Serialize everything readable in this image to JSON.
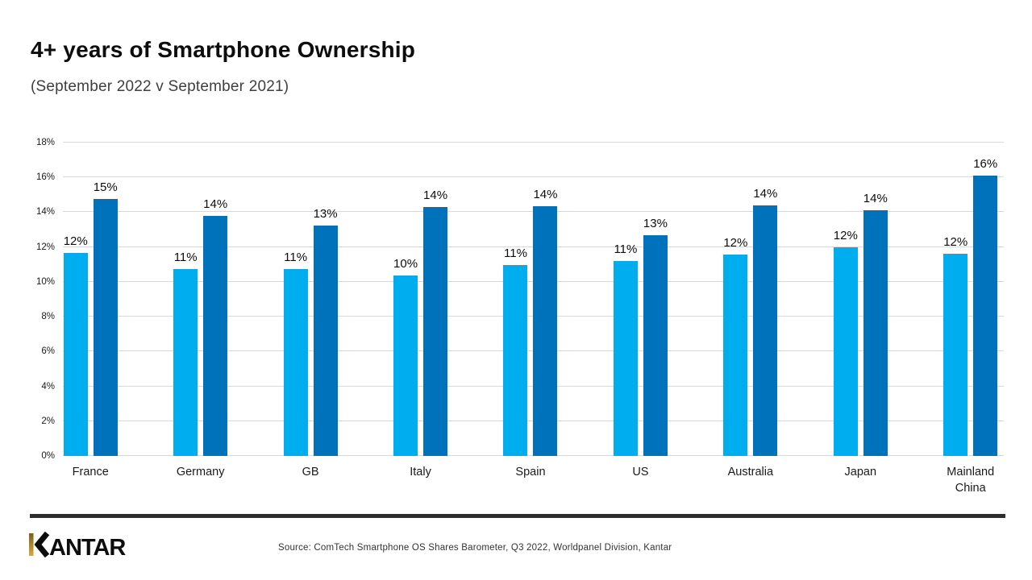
{
  "page": {
    "title": "4+ years of Smartphone Ownership",
    "subtitle": "(September 2022 v September 2021)"
  },
  "footer": {
    "logo_text": "KANTAR",
    "source": "Source: ComTech Smartphone OS Shares Barometer, Q3 2022, Worldpanel Division, Kantar"
  },
  "colors": {
    "series_light_blue": "#00aeef",
    "series_dark_blue": "#0072bc",
    "gridline": "#d9d9d9",
    "divider": "#2d2d2d",
    "title_text": "#0d0d0d",
    "subtitle_text": "#3f3f3f",
    "logo_gold_top": "#7a5f1a",
    "logo_gold_bottom": "#d4ab3a"
  },
  "chart_data": {
    "type": "bar",
    "title": "4+ years of Smartphone Ownership",
    "subtitle": "(September 2022 v September 2021)",
    "categories": [
      "France",
      "Germany",
      "GB",
      "Italy",
      "Spain",
      "US",
      "Australia",
      "Japan",
      "Mainland China"
    ],
    "series": [
      {
        "name": "left-bar-light-blue",
        "color": "#00aeef",
        "values": [
          12,
          11,
          11,
          10,
          11,
          11,
          12,
          12,
          12
        ],
        "data_labels": [
          "12%",
          "11%",
          "11%",
          "10%",
          "11%",
          "11%",
          "12%",
          "12%",
          "12%"
        ],
        "plotted_heights_pct": [
          11.65,
          10.75,
          10.75,
          10.35,
          10.95,
          11.2,
          11.55,
          12.0,
          11.6
        ]
      },
      {
        "name": "right-bar-dark-blue",
        "color": "#0072bc",
        "values": [
          15,
          14,
          13,
          14,
          14,
          13,
          14,
          14,
          16
        ],
        "data_labels": [
          "15%",
          "14%",
          "13%",
          "14%",
          "14%",
          "13%",
          "14%",
          "14%",
          "16%"
        ],
        "plotted_heights_pct": [
          14.75,
          13.8,
          13.25,
          14.3,
          14.35,
          12.7,
          14.4,
          14.1,
          16.1
        ]
      }
    ],
    "xlabel": "",
    "ylabel": "",
    "ylim": [
      0,
      18
    ],
    "ytick_step": 2,
    "yticks": [
      "0%",
      "2%",
      "4%",
      "6%",
      "8%",
      "10%",
      "12%",
      "14%",
      "16%",
      "18%"
    ],
    "grid": true,
    "legend": "none"
  }
}
